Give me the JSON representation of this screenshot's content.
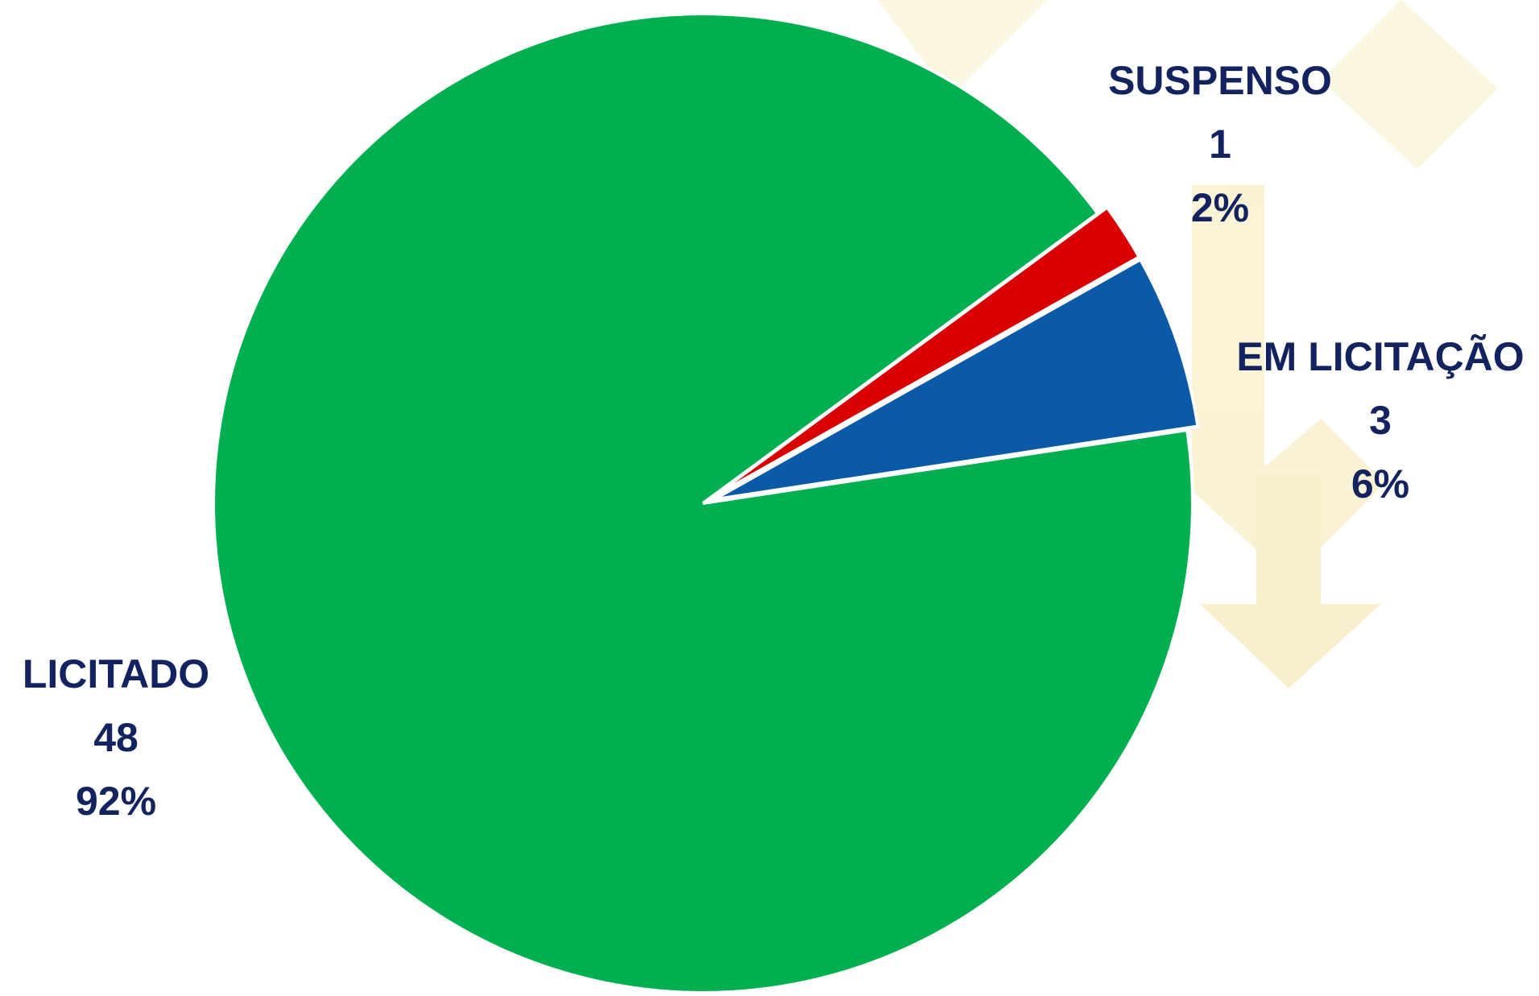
{
  "chart_data": {
    "type": "pie",
    "categories": [
      "LICITADO",
      "SUSPENSO",
      "EM LICITAÇÃO"
    ],
    "values": [
      48,
      1,
      3
    ],
    "percent_labels": [
      "92%",
      "2%",
      "6%"
    ],
    "colors": [
      "#00b050",
      "#d80000",
      "#0a5aa8"
    ]
  }
}
